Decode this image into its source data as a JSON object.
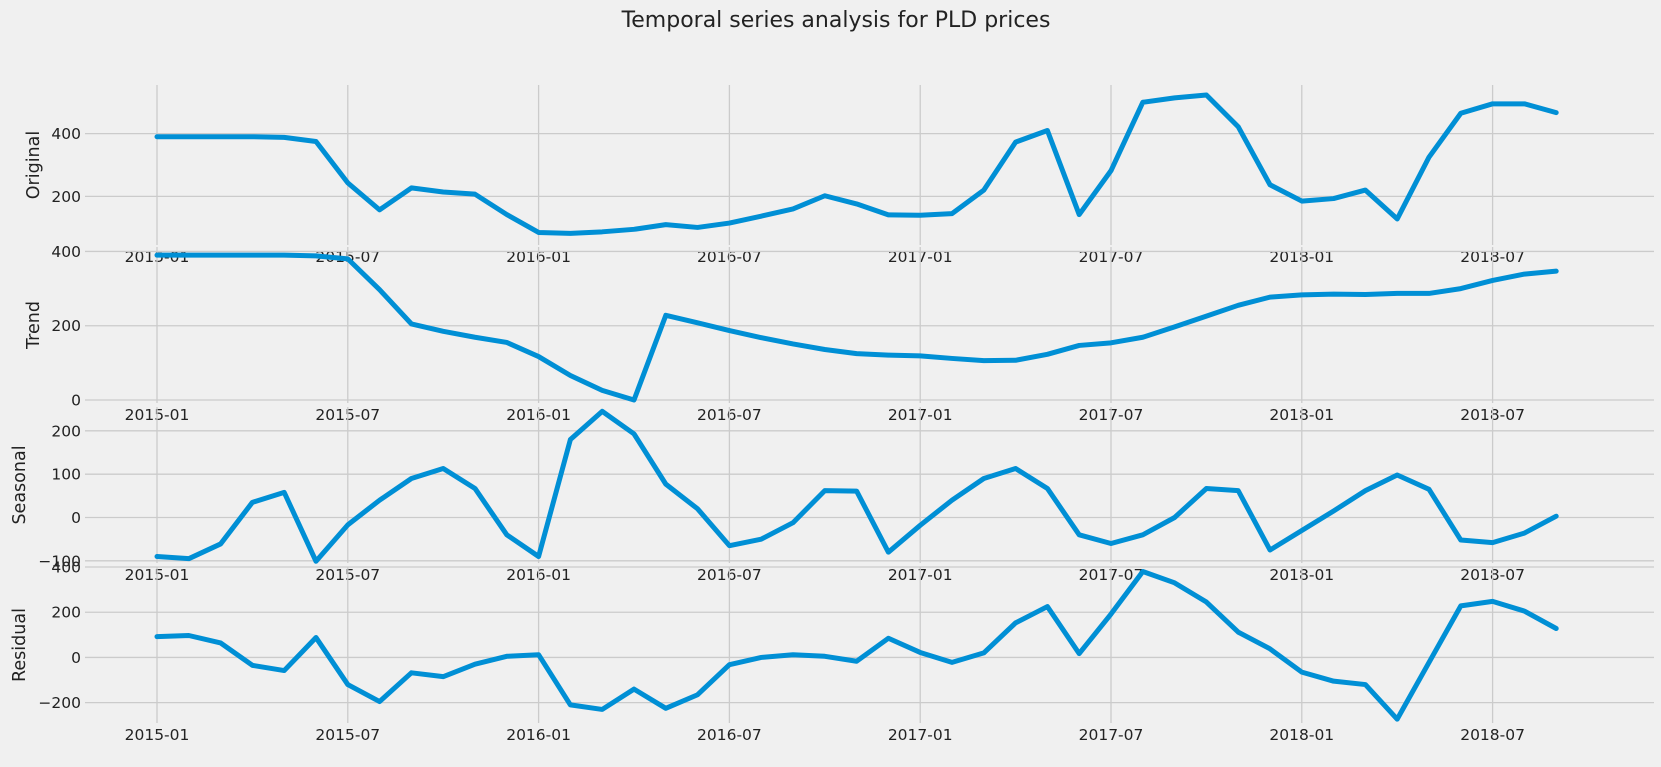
{
  "figure": {
    "title": "Temporal series analysis for PLD prices",
    "background": "#f0f0f0",
    "line_color": "#008fd5",
    "grid_color": "#cbcbcb"
  },
  "chart_data": [
    {
      "type": "line",
      "ylabel": "Original",
      "x_ticks": [
        "2015-01",
        "2015-07",
        "2016-01",
        "2016-07",
        "2017-01",
        "2017-07",
        "2018-01",
        "2018-07"
      ],
      "y_ticks": [
        200,
        400
      ],
      "ylim": [
        45,
        555
      ],
      "grid": true,
      "series": [
        {
          "x": [
            "2015-01",
            "2015-02",
            "2015-03",
            "2015-04",
            "2015-05",
            "2015-06",
            "2015-07",
            "2015-08",
            "2015-09",
            "2015-10",
            "2015-11",
            "2015-12",
            "2016-01",
            "2016-02",
            "2016-03",
            "2016-04",
            "2016-05",
            "2016-06",
            "2016-07",
            "2016-08",
            "2016-09",
            "2016-10",
            "2016-11",
            "2016-12",
            "2017-01",
            "2017-02",
            "2017-03",
            "2017-04",
            "2017-05",
            "2017-06",
            "2017-07",
            "2017-08",
            "2017-09",
            "2017-10",
            "2017-11",
            "2017-12",
            "2018-01",
            "2018-02",
            "2018-03",
            "2018-04",
            "2018-05",
            "2018-06",
            "2018-07",
            "2018-08",
            "2018-09"
          ],
          "y": [
            390,
            390,
            390,
            390,
            388,
            375,
            243,
            157,
            227,
            214,
            207,
            142,
            85,
            82,
            87,
            95,
            110,
            101,
            115,
            137,
            160,
            202,
            176,
            141,
            140,
            145,
            220,
            373,
            410,
            142,
            282,
            500,
            514,
            523,
            422,
            237,
            185,
            193,
            220,
            128,
            325,
            465,
            495,
            495,
            467
          ]
        }
      ]
    },
    {
      "type": "line",
      "ylabel": "Trend",
      "x_ticks": [
        "2015-01",
        "2015-07",
        "2016-01",
        "2016-07",
        "2017-01",
        "2017-07",
        "2018-01",
        "2018-07"
      ],
      "y_ticks": [
        0,
        200,
        400
      ],
      "ylim": [
        -8,
        412
      ],
      "grid": true,
      "series": [
        {
          "x": [
            "2015-01",
            "2015-02",
            "2015-03",
            "2015-04",
            "2015-05",
            "2015-06",
            "2015-07",
            "2015-08",
            "2015-09",
            "2015-10",
            "2015-11",
            "2015-12",
            "2016-01",
            "2016-02",
            "2016-03",
            "2016-04",
            "2016-05",
            "2016-06",
            "2016-07",
            "2016-08",
            "2016-09",
            "2016-10",
            "2016-11",
            "2016-12",
            "2017-01",
            "2017-02",
            "2017-03",
            "2017-04",
            "2017-05",
            "2017-06",
            "2017-07",
            "2017-08",
            "2017-09",
            "2017-10",
            "2017-11",
            "2017-12",
            "2018-01",
            "2018-02",
            "2018-03",
            "2018-04",
            "2018-05",
            "2018-06",
            "2018-07",
            "2018-08",
            "2018-09"
          ],
          "y": [
            390,
            390,
            390,
            390,
            390,
            388,
            380,
            297,
            205,
            185,
            169,
            155,
            117,
            66,
            26,
            0,
            228,
            208,
            187,
            168,
            151,
            136,
            125,
            121,
            119,
            112,
            106,
            107,
            123,
            147,
            154,
            169,
            197,
            226,
            255,
            277,
            283,
            285,
            284,
            287,
            287,
            300,
            322,
            339,
            347
          ]
        }
      ]
    },
    {
      "type": "line",
      "ylabel": "Seasonal",
      "x_ticks": [
        "2015-01",
        "2015-07",
        "2016-01",
        "2016-07",
        "2017-01",
        "2017-07",
        "2018-01",
        "2018-07"
      ],
      "y_ticks": [
        -100,
        0,
        100,
        200
      ],
      "ylim": [
        -105,
        255
      ],
      "grid": true,
      "series": [
        {
          "x": [
            "2015-01",
            "2015-02",
            "2015-03",
            "2015-04",
            "2015-05",
            "2015-06",
            "2015-07",
            "2015-08",
            "2015-09",
            "2015-10",
            "2015-11",
            "2015-12",
            "2016-01",
            "2016-02",
            "2016-03",
            "2016-04",
            "2016-05",
            "2016-06",
            "2016-07",
            "2016-08",
            "2016-09",
            "2016-10",
            "2016-11",
            "2016-12",
            "2017-01",
            "2017-02",
            "2017-03",
            "2017-04",
            "2017-05",
            "2017-06",
            "2017-07",
            "2017-08",
            "2017-09",
            "2017-10",
            "2017-11",
            "2017-12",
            "2018-01",
            "2018-02",
            "2018-03",
            "2018-04",
            "2018-05",
            "2018-06",
            "2018-07",
            "2018-08",
            "2018-09"
          ],
          "y": [
            -90,
            -95,
            -61,
            35,
            58,
            -101,
            -17,
            40,
            90,
            113,
            67,
            -40,
            -90,
            180,
            245,
            193,
            77,
            20,
            -65,
            -50,
            -12,
            62,
            61,
            -80,
            -18,
            40,
            90,
            113,
            67,
            -40,
            -60,
            -40,
            0,
            67,
            62,
            -75,
            -30,
            15,
            62,
            98,
            65,
            -52,
            -58,
            -36,
            3
          ]
        }
      ]
    },
    {
      "type": "line",
      "ylabel": "Residual",
      "x_ticks": [
        "2015-01",
        "2015-07",
        "2016-01",
        "2016-07",
        "2017-01",
        "2017-07",
        "2018-01",
        "2018-07"
      ],
      "y_ticks": [
        -200,
        0,
        200,
        400
      ],
      "ylim": [
        -290,
        400
      ],
      "grid": true,
      "series": [
        {
          "x": [
            "2015-01",
            "2015-02",
            "2015-03",
            "2015-04",
            "2015-05",
            "2015-06",
            "2015-07",
            "2015-08",
            "2015-09",
            "2015-10",
            "2015-11",
            "2015-12",
            "2016-01",
            "2016-02",
            "2016-03",
            "2016-04",
            "2016-05",
            "2016-06",
            "2016-07",
            "2016-08",
            "2016-09",
            "2016-10",
            "2016-11",
            "2016-12",
            "2017-01",
            "2017-02",
            "2017-03",
            "2017-04",
            "2017-05",
            "2017-06",
            "2017-07",
            "2017-08",
            "2017-09",
            "2017-10",
            "2017-11",
            "2017-12",
            "2018-01",
            "2018-02",
            "2018-03",
            "2018-04",
            "2018-05",
            "2018-06",
            "2018-07",
            "2018-08",
            "2018-09"
          ],
          "y": [
            92,
            97,
            64,
            -35,
            -58,
            88,
            -120,
            -195,
            -68,
            -85,
            -30,
            5,
            12,
            -210,
            -230,
            -140,
            -225,
            -165,
            -32,
            0,
            12,
            5,
            -17,
            85,
            22,
            -22,
            20,
            153,
            225,
            17,
            192,
            380,
            330,
            245,
            112,
            38,
            -65,
            -105,
            -120,
            -273,
            -22,
            228,
            248,
            205,
            128
          ]
        }
      ]
    }
  ]
}
